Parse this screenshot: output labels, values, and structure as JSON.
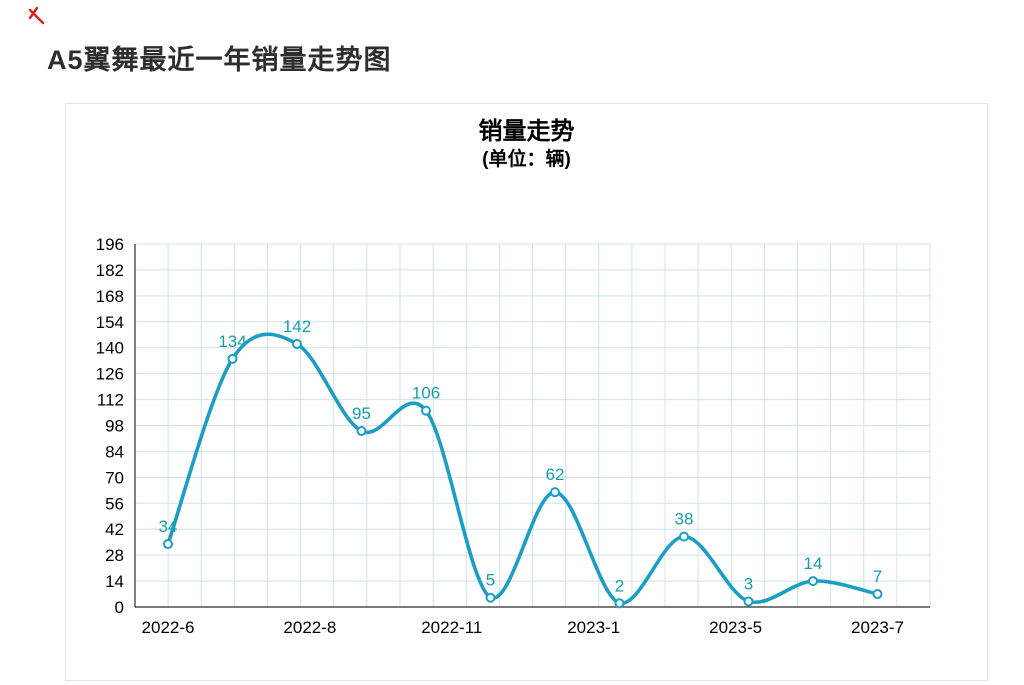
{
  "page": {
    "title": "A5翼舞最近一年销量走势图"
  },
  "chart": {
    "title": "销量走势",
    "subtitle": "(单位：辆)"
  },
  "chart_data": {
    "type": "line",
    "title": "销量走势",
    "subtitle": "(单位：辆)",
    "x_tick_labels": [
      "2022-6",
      "2022-8",
      "2022-11",
      "2023-1",
      "2023-5",
      "2023-7"
    ],
    "values": [
      34,
      134,
      142,
      95,
      106,
      5,
      62,
      2,
      38,
      3,
      14,
      7
    ],
    "point_labels": [
      "34",
      "134",
      "142",
      "95",
      "106",
      "5",
      "62",
      "2",
      "38",
      "3",
      "14",
      "7"
    ],
    "y_ticks": [
      0,
      14,
      28,
      42,
      56,
      70,
      84,
      98,
      112,
      126,
      140,
      154,
      168,
      182,
      196
    ],
    "ylim": [
      0,
      196
    ],
    "grid": true,
    "smooth": true,
    "legend": "none",
    "line_color": "#1a9ec5",
    "point_label_color": "#159fad",
    "grid_color": "#d4e0ee",
    "axis_color": "#2b2b2b",
    "tick_label_color": "#000000",
    "corner_mark_color": "#e02020"
  }
}
